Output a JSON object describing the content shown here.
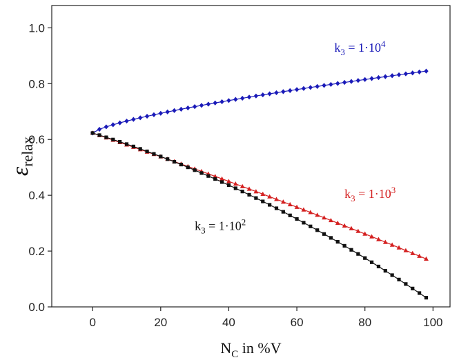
{
  "chart_data": {
    "type": "scatter",
    "xlabel": {
      "main": "N",
      "sub": "C",
      "rest": " in %V"
    },
    "ylabel": {
      "main": "ε",
      "sub": "relax"
    },
    "xlim": [
      -12,
      105
    ],
    "ylim": [
      0,
      1.08
    ],
    "x_ticks": [
      0,
      20,
      40,
      60,
      80,
      100
    ],
    "y_ticks": [
      0.0,
      0.2,
      0.4,
      0.6,
      0.8,
      1.0
    ],
    "x_tick_labels": [
      "0",
      "20",
      "40",
      "60",
      "80",
      "100"
    ],
    "y_tick_labels": [
      "0.0",
      "0.2",
      "0.4",
      "0.6",
      "0.8",
      "1.0"
    ],
    "grid": false,
    "series": [
      {
        "name": "k3 = 1·10^4",
        "label": {
          "pre": "k",
          "sub": "3",
          "mid": " = 1·10",
          "sup": "4"
        },
        "color": "#1a1ab8",
        "marker": "diamond",
        "start": 0.623,
        "end": 0.845,
        "curvature": "concave",
        "label_pos": [
          71,
          0.915
        ]
      },
      {
        "name": "k3 = 1·10^3",
        "label": {
          "pre": "k",
          "sub": "3",
          "mid": " = 1·10",
          "sup": "3"
        },
        "color": "#d42020",
        "marker": "triangle",
        "start": 0.623,
        "end": 0.172,
        "curvature": "slight",
        "label_pos": [
          74,
          0.39
        ]
      },
      {
        "name": "k3 = 1·10^2",
        "label": {
          "pre": "k",
          "sub": "3",
          "mid": " = 1·10",
          "sup": "2"
        },
        "color": "#111111",
        "marker": "square",
        "start": 0.623,
        "end": 0.033,
        "curvature": "convex",
        "label_pos": [
          30,
          0.275
        ]
      }
    ],
    "x_range": [
      0,
      98
    ],
    "points_per_series": 50
  }
}
